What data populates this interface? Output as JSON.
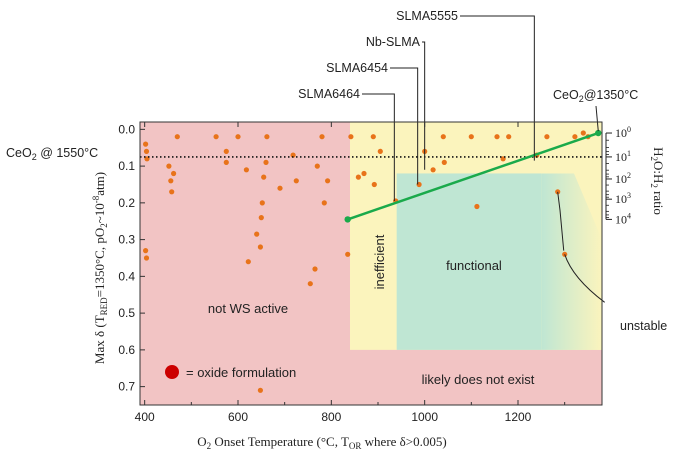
{
  "chart_data": {
    "type": "scatter",
    "xlabel": "O₂ Onset Temperature (°C, Tₒᵣ where δ>0.005)",
    "xlabel_parts": {
      "a": "O",
      "b": "2",
      "c": " Onset Temperature (°C, T",
      "d": "OR",
      "e": " where δ>0.005)"
    },
    "ylabel": "Max δ (T_RED=1350°C, pO₂~10⁻⁸atm)",
    "ylabel_parts": {
      "a": "Max δ (T",
      "b": "RED",
      "c": "=1350°C, pO",
      "d": "2",
      "e": "~10",
      "f": "-8",
      "g": "atm)"
    },
    "xlim": [
      390,
      1380
    ],
    "ylim": [
      0.75,
      -0.02
    ],
    "x_ticks": [
      400,
      600,
      800,
      1000,
      1200
    ],
    "y_ticks": [
      0.0,
      0.1,
      0.2,
      0.3,
      0.4,
      0.5,
      0.6,
      0.7
    ],
    "x_tick_labels": [
      "400",
      "600",
      "800",
      "1000",
      "1200"
    ],
    "y_tick_labels": [
      "0.0",
      "0.1",
      "0.2",
      "0.3",
      "0.4",
      "0.5",
      "0.6",
      "0.7"
    ],
    "right_axis": {
      "label_parts": {
        "a": "H",
        "b": "2",
        "c": "O:H",
        "d": "2",
        "e": " ratio"
      },
      "ticks": [
        {
          "base": "10",
          "exp": "0"
        },
        {
          "base": "10",
          "exp": "1"
        },
        {
          "base": "10",
          "exp": "2"
        },
        {
          "base": "10",
          "exp": "3"
        },
        {
          "base": "10",
          "exp": "4"
        }
      ],
      "tick_delta": [
        0.01,
        0.075,
        0.135,
        0.19,
        0.245
      ]
    },
    "regions": [
      {
        "label": "not WS active",
        "color": "#f2c4c4"
      },
      {
        "label": "inefficient",
        "color": "#fbf4bd"
      },
      {
        "label": "functional",
        "color": "#bfe6d3"
      },
      {
        "label": "likely does not exist",
        "color": "#f2c4c4"
      }
    ],
    "points": [
      {
        "x": 402,
        "y": 0.04
      },
      {
        "x": 404,
        "y": 0.06
      },
      {
        "x": 405,
        "y": 0.08
      },
      {
        "x": 402,
        "y": 0.33
      },
      {
        "x": 404,
        "y": 0.35
      },
      {
        "x": 452,
        "y": 0.1
      },
      {
        "x": 456,
        "y": 0.14
      },
      {
        "x": 458,
        "y": 0.17
      },
      {
        "x": 462,
        "y": 0.12
      },
      {
        "x": 470,
        "y": 0.02
      },
      {
        "x": 553,
        "y": 0.02
      },
      {
        "x": 575,
        "y": 0.06
      },
      {
        "x": 575,
        "y": 0.09
      },
      {
        "x": 600,
        "y": 0.02
      },
      {
        "x": 618,
        "y": 0.11
      },
      {
        "x": 622,
        "y": 0.36
      },
      {
        "x": 640,
        "y": 0.285
      },
      {
        "x": 648,
        "y": 0.32
      },
      {
        "x": 650,
        "y": 0.24
      },
      {
        "x": 652,
        "y": 0.2
      },
      {
        "x": 655,
        "y": 0.13
      },
      {
        "x": 660,
        "y": 0.09
      },
      {
        "x": 662,
        "y": 0.02
      },
      {
        "x": 648,
        "y": 0.71
      },
      {
        "x": 690,
        "y": 0.16
      },
      {
        "x": 718,
        "y": 0.07
      },
      {
        "x": 725,
        "y": 0.14
      },
      {
        "x": 755,
        "y": 0.42
      },
      {
        "x": 765,
        "y": 0.38
      },
      {
        "x": 770,
        "y": 0.1
      },
      {
        "x": 780,
        "y": 0.02
      },
      {
        "x": 785,
        "y": 0.2
      },
      {
        "x": 792,
        "y": 0.14
      },
      {
        "x": 835,
        "y": 0.34
      },
      {
        "x": 842,
        "y": 0.02
      },
      {
        "x": 858,
        "y": 0.13
      },
      {
        "x": 870,
        "y": 0.12
      },
      {
        "x": 890,
        "y": 0.02
      },
      {
        "x": 892,
        "y": 0.15
      },
      {
        "x": 905,
        "y": 0.06
      },
      {
        "x": 938,
        "y": 0.195
      },
      {
        "x": 988,
        "y": 0.15
      },
      {
        "x": 1000,
        "y": 0.06
      },
      {
        "x": 1018,
        "y": 0.11
      },
      {
        "x": 1042,
        "y": 0.09
      },
      {
        "x": 1040,
        "y": 0.02
      },
      {
        "x": 1100,
        "y": 0.02
      },
      {
        "x": 1112,
        "y": 0.21
      },
      {
        "x": 1155,
        "y": 0.02
      },
      {
        "x": 1168,
        "y": 0.08
      },
      {
        "x": 1180,
        "y": 0.02
      },
      {
        "x": 1240,
        "y": 0.07
      },
      {
        "x": 1262,
        "y": 0.02
      },
      {
        "x": 1285,
        "y": 0.17
      },
      {
        "x": 1300,
        "y": 0.34
      },
      {
        "x": 1322,
        "y": 0.02
      },
      {
        "x": 1340,
        "y": 0.01
      },
      {
        "x": 1350,
        "y": 0.02
      }
    ],
    "green_line": {
      "x": [
        835,
        1372
      ],
      "y": [
        0.245,
        0.01
      ]
    },
    "ceo2_1550_y": 0.075,
    "annotations": [
      {
        "label": "SLMA5555",
        "x": 1235,
        "y": 0.085
      },
      {
        "label": "Nb-SLMA",
        "x": 1000,
        "y": 0.11
      },
      {
        "label": "SLMA6454",
        "x": 985,
        "y": 0.15
      },
      {
        "label": "SLMA6464",
        "x": 935,
        "y": 0.195
      },
      {
        "label": "unstable",
        "x": 1300,
        "y": 0.34
      }
    ],
    "ceo2_1350": {
      "a": "CeO",
      "b": "2",
      "c": "@1350°C",
      "x": 1372,
      "y": 0.01
    },
    "ceo2_1550": {
      "a": "CeO",
      "b": "2",
      "c": " @ 1550°C"
    },
    "legend": {
      "label": "= oxide formulation",
      "placement": "bottom-left"
    },
    "colors": {
      "point": "#e8731a",
      "green": "#1aaa4b",
      "red_region": "#f2c4c4",
      "yellow_region": "#fbf4bd",
      "green_region": "#bfe6d3",
      "point_legend": "#cc0000"
    }
  }
}
